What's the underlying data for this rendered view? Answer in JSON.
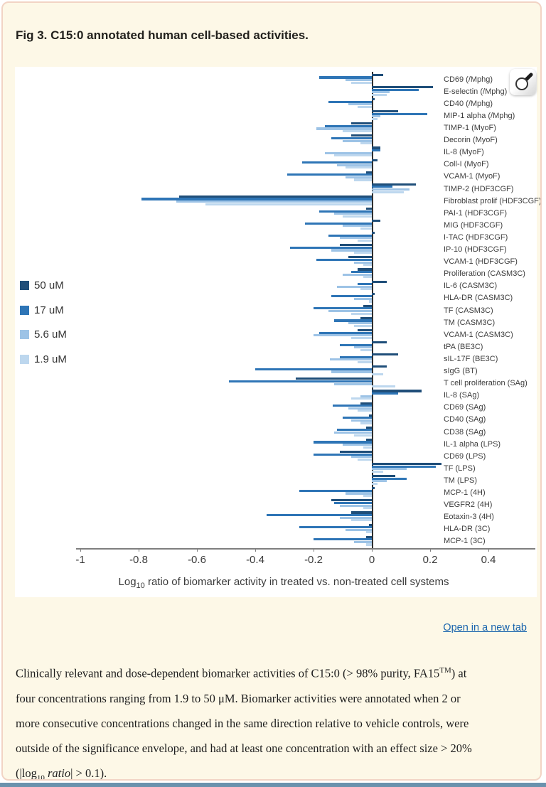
{
  "page": {
    "title": "Fig 3. C15:0 annotated human cell-based activities.",
    "open_link_label": "Open in a new tab",
    "caption_segments": [
      {
        "t": "Clinically relevant and dose-dependent biomarker activities of C15:0 (> 98% purity, FA15"
      },
      {
        "t": "TM",
        "s": "sup"
      },
      {
        "t": ") at"
      },
      {
        "s": "br"
      },
      {
        "t": "four concentrations ranging from 1.9 to 50 μM. Biomarker activities were annotated when 2 or"
      },
      {
        "s": "br"
      },
      {
        "t": "more consecutive concentrations changed in the same direction relative to vehicle controls, were"
      },
      {
        "s": "br"
      },
      {
        "t": "outside of the significance envelope, and had at least one concentration with an effect size > 20%"
      },
      {
        "s": "br"
      },
      {
        "t": "(|log"
      },
      {
        "t": "10",
        "s": "sub"
      },
      {
        "t": " ratio",
        "s": "i"
      },
      {
        "t": "| > 0.1)."
      }
    ],
    "colors": {
      "panel_bg": "#fdf8e7",
      "panel_border": "#f2d4c5",
      "link_blue": "#1a64ad",
      "bottom_strip": "#6a92ad",
      "axis_gray": "#7f7f7f",
      "zero_line": "#2f2f2f"
    },
    "icons": {
      "magnifier": "magnifier-icon"
    }
  },
  "chart_data": {
    "type": "bar",
    "orientation": "horizontal",
    "title": "",
    "xlabel": "Log10 ratio of biomarker activity in treated vs. non-treated cell systems",
    "xlabel_parts": [
      {
        "t": "Log"
      },
      {
        "t": "10",
        "s": "sub"
      },
      {
        "t": " ratio of biomarker activity in treated vs. non-treated cell systems"
      }
    ],
    "xlim": [
      -1,
      0.4
    ],
    "xticks": [
      -1,
      -0.8,
      -0.6,
      -0.4,
      -0.2,
      0,
      0.2,
      0.4
    ],
    "xtick_labels": [
      "-1",
      "-0.8",
      "-0.6",
      "-0.4",
      "-0.2",
      "0",
      "0.2",
      "0.4"
    ],
    "grid": false,
    "legend_position": "left",
    "categories": [
      "CD69 (/Mphg)",
      "E-selectin (/Mphg)",
      "CD40 (/Mphg)",
      "MIP-1 alpha (/Mphg)",
      "TIMP-1 (MyoF)",
      "Decorin (MyoF)",
      "IL-8 (MyoF)",
      "Coll-I (MyoF)",
      "VCAM-1 (MyoF)",
      "TIMP-2 (HDF3CGF)",
      "Fibroblast prolif (HDF3CGF)",
      "PAI-1 (HDF3CGF)",
      "MIG (HDF3CGF)",
      "I-TAC (HDF3CGF)",
      "IP-10 (HDF3CGF)",
      "VCAM-1 (HDF3CGF)",
      "Proliferation (CASM3C)",
      "IL-6 (CASM3C)",
      "HLA-DR (CASM3C)",
      "TF (CASM3C)",
      "TM (CASM3C)",
      "VCAM-1 (CASM3C)",
      "tPA (BE3C)",
      "sIL-17F (BE3C)",
      "sIgG (BT)",
      "T cell proliferation (SAg)",
      "IL-8 (SAg)",
      "CD69 (SAg)",
      "CD40 (SAg)",
      "CD38 (SAg)",
      "IL-1 alpha (LPS)",
      "CD69 (LPS)",
      "TF (LPS)",
      "TM (LPS)",
      "MCP-1 (4H)",
      "VEGFR2 (4H)",
      "Eotaxin-3 (4H)",
      "HLA-DR (3C)",
      "MCP-1 (3C)"
    ],
    "series": [
      {
        "name": "50 uM",
        "color": "#1f4e79",
        "values": [
          0.04,
          0.21,
          0.01,
          0.09,
          -0.07,
          -0.07,
          0.03,
          0.02,
          -0.02,
          0.15,
          -0.66,
          -0.02,
          0.03,
          0.01,
          -0.11,
          -0.08,
          -0.05,
          0.05,
          0.01,
          -0.03,
          -0.04,
          -0.05,
          0.05,
          0.09,
          0.05,
          -0.26,
          0.17,
          -0.04,
          -0.01,
          -0.02,
          -0.02,
          -0.11,
          0.24,
          0.08,
          0.01,
          -0.14,
          -0.07,
          -0.01,
          -0.02
        ]
      },
      {
        "name": "17 uM",
        "color": "#2e75b6",
        "values": [
          -0.18,
          0.16,
          -0.15,
          0.19,
          -0.16,
          -0.14,
          0.03,
          -0.24,
          -0.29,
          0.07,
          -0.79,
          -0.18,
          -0.23,
          -0.15,
          -0.28,
          -0.19,
          -0.07,
          -0.05,
          -0.14,
          -0.2,
          -0.13,
          -0.18,
          -0.11,
          -0.11,
          -0.4,
          -0.49,
          0.09,
          -0.135,
          -0.1,
          -0.12,
          -0.2,
          -0.2,
          0.22,
          0.12,
          -0.25,
          -0.13,
          -0.36,
          -0.25,
          -0.2
        ]
      },
      {
        "name": "5.6 uM",
        "color": "#9dc3e6",
        "values": [
          -0.09,
          0.06,
          -0.08,
          0.03,
          -0.19,
          -0.1,
          -0.16,
          -0.12,
          -0.09,
          0.13,
          -0.67,
          -0.13,
          -0.1,
          -0.11,
          -0.14,
          -0.06,
          -0.1,
          -0.12,
          -0.06,
          -0.15,
          -0.08,
          -0.2,
          -0.06,
          -0.145,
          -0.14,
          -0.13,
          -0.04,
          -0.08,
          -0.07,
          -0.13,
          -0.1,
          -0.07,
          0.12,
          0.05,
          -0.09,
          -0.11,
          -0.11,
          -0.09,
          -0.06
        ]
      },
      {
        "name": "1.9 uM",
        "color": "#bdd7ee",
        "values": [
          -0.07,
          0.05,
          -0.05,
          0.02,
          -0.1,
          -0.04,
          -0.13,
          -0.09,
          -0.06,
          0.11,
          -0.57,
          -0.1,
          -0.04,
          -0.05,
          -0.06,
          -0.03,
          -0.03,
          -0.04,
          -0.01,
          -0.07,
          -0.06,
          -0.07,
          -0.04,
          -0.05,
          0.04,
          0.08,
          -0.07,
          -0.05,
          -0.04,
          -0.06,
          -0.03,
          -0.05,
          0.04,
          0.02,
          -0.03,
          -0.03,
          -0.07,
          -0.02,
          -0.02
        ]
      }
    ]
  }
}
